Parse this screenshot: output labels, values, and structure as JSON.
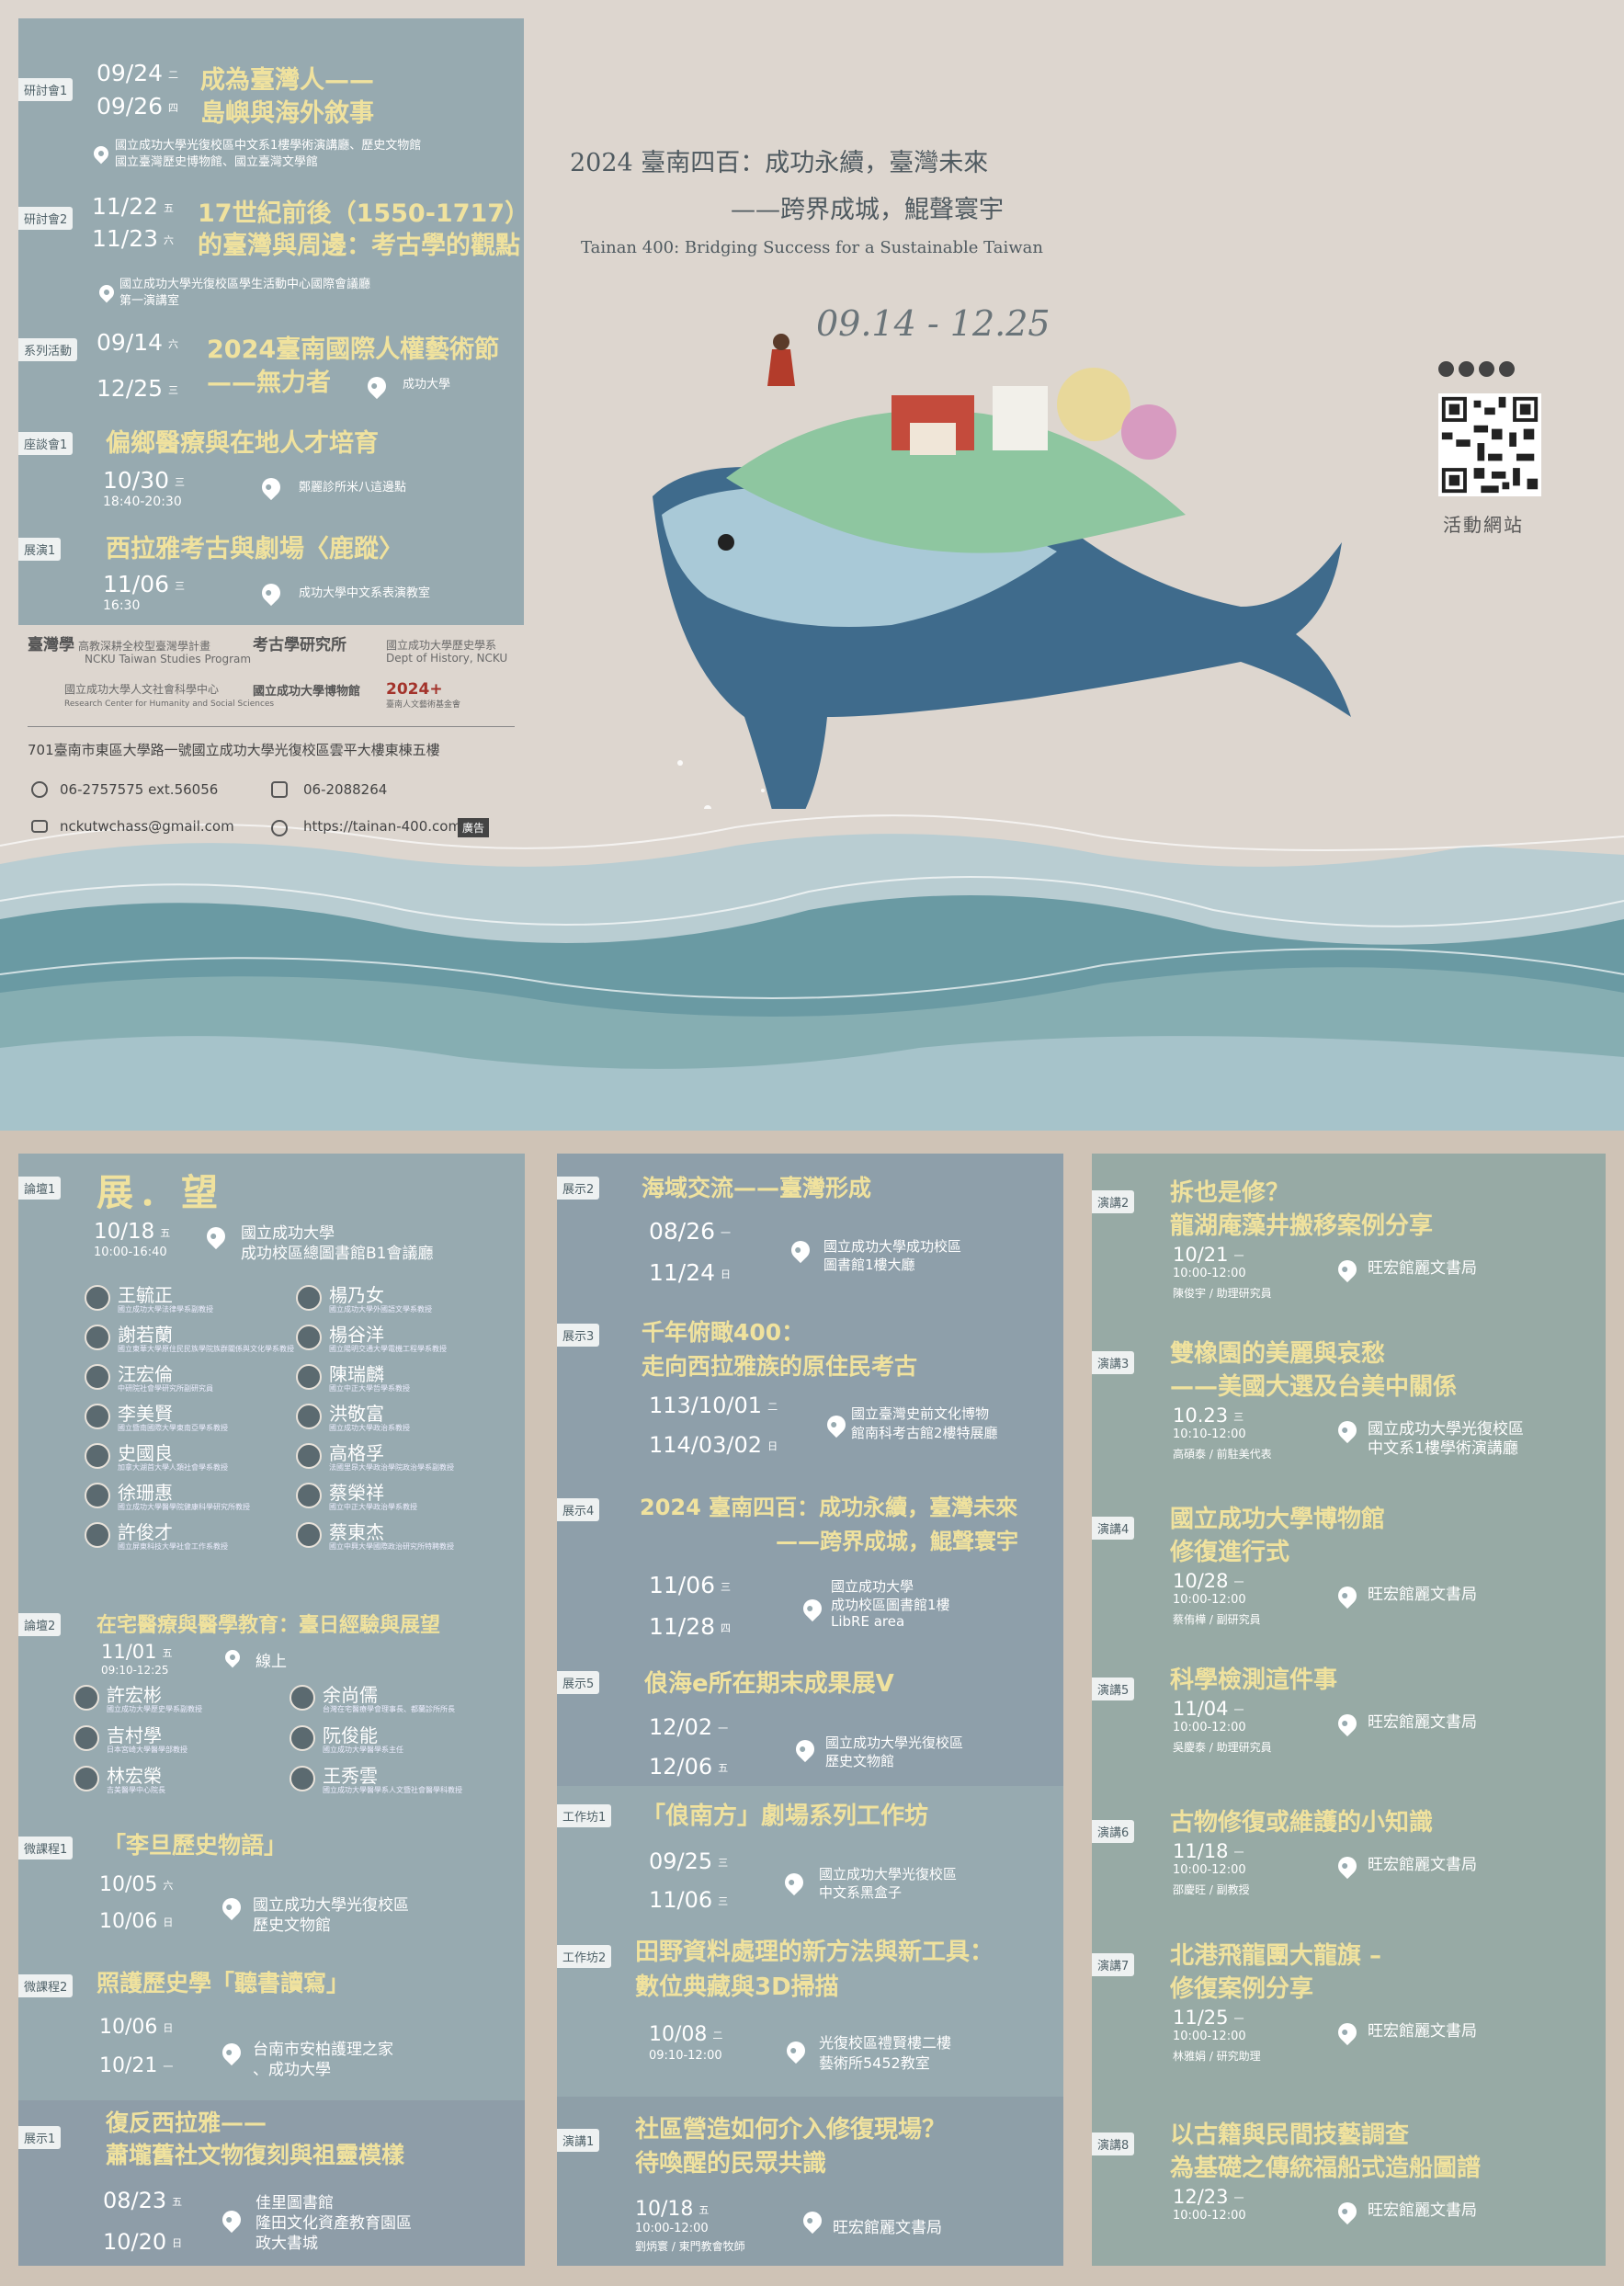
{
  "top": {
    "left_events": [
      {
        "tag": "研討會1",
        "d1": "09/24",
        "w1": "二",
        "d2": "09/26",
        "w2": "四",
        "t1": "成為臺灣人——",
        "t2": "島嶼與海外敘事",
        "v1": "國立成功大學光復校區中文系1樓學術演講廳、歷史文物館",
        "v2": "國立臺灣歷史博物館、國立臺灣文學館"
      },
      {
        "tag": "研討會2",
        "d1": "11/22",
        "w1": "五",
        "d2": "11/23",
        "w2": "六",
        "t1": "17世紀前後（1550-1717）",
        "t2": "的臺灣與周邊：考古學的觀點",
        "v1": "國立成功大學光復校區學生活動中心國際會議廳",
        "v2": "第一演講室"
      },
      {
        "tag": "系列活動",
        "d1": "09/14",
        "w1": "六",
        "d2": "12/25",
        "w2": "三",
        "t1": "2024臺南國際人權藝術節",
        "t2": "——無力者",
        "v1": "成功大學",
        "v2": ""
      },
      {
        "tag": "座談會1",
        "d1": "10/30",
        "w1": "三",
        "time": "18:40-20:30",
        "t1": "偏鄉醫療與在地人才培育",
        "v1": "鄭麗診所米八這邊點"
      },
      {
        "tag": "展演1",
        "d1": "11/06",
        "w1": "三",
        "time": "16:30",
        "t1": "西拉雅考古與劇場〈鹿蹤〉",
        "v1": "成功大學中文系表演教室"
      }
    ],
    "logos": [
      {
        "mark": "臺灣學",
        "text": "高教深耕全校型臺灣學計畫",
        "sub": "NCKU Taiwan Studies Program"
      },
      {
        "mark": "考古學研究所",
        "text": "",
        "sub": ""
      },
      {
        "mark": "",
        "text": "國立成功大學歷史學系",
        "sub": "Dept of History, NCKU"
      },
      {
        "mark": "",
        "text": "國立成功大學人文社會科學中心",
        "sub": "Research Center for Humanity and Social Sciences"
      },
      {
        "mark": "國立成功大學博物館",
        "text": "",
        "sub": ""
      },
      {
        "mark": "2024+",
        "text": "臺南人文藝術基金會",
        "sub": ""
      }
    ],
    "address": "701臺南市東區大學路一號國立成功大學光復校區雲平大樓東棟五樓",
    "phone": "06-2757575 ext.56056",
    "fax": "06-2088264",
    "email": "nckutwchass@gmail.com",
    "website": "https://tainan-400.com",
    "ad_badge": "廣告",
    "title_l1": "2024 臺南四百：成功永續，臺灣未來",
    "title_l2": "——跨界成城，鯤聲寰宇",
    "title_en": "Tainan 400: Bridging Success for a Sustainable Taiwan",
    "date_range": "09.14 - 12.25",
    "qr_label": "活動網站",
    "social_icons": [
      "facebook-icon",
      "youtube-icon",
      "instagram-icon",
      "podcast-icon"
    ]
  },
  "col1": {
    "forum1": {
      "tag": "論壇1",
      "title": "展．望",
      "date": "10/18",
      "wd": "五",
      "time": "10:00-16:40",
      "v1": "國立成功大學",
      "v2": "成功校區總圖書館B1會議廳"
    },
    "speakers1": [
      {
        "name": "王毓正",
        "role": "國立成功大學法律學系副教授"
      },
      {
        "name": "楊乃女",
        "role": "國立成功大學外國語文學系教授"
      },
      {
        "name": "謝若蘭",
        "role": "國立東華大學原住民民族學院族群關係與文化學系教授"
      },
      {
        "name": "楊谷洋",
        "role": "國立陽明交通大學電機工程學系教授"
      },
      {
        "name": "汪宏倫",
        "role": "中研院社會學研究所副研究員"
      },
      {
        "name": "陳瑞麟",
        "role": "國立中正大學哲學系教授"
      },
      {
        "name": "李美賢",
        "role": "國立暨南國際大學東南亞學系教授"
      },
      {
        "name": "洪敬富",
        "role": "國立成功大學政治系教授"
      },
      {
        "name": "史國良",
        "role": "加拿大湖首大學人類社會學系教授"
      },
      {
        "name": "高格孚",
        "role": "法國里昂大學政治學院政治學系副教授"
      },
      {
        "name": "徐珊惠",
        "role": "國立成功大學醫學院健康科學研究所教授"
      },
      {
        "name": "蔡榮祥",
        "role": "國立中正大學政治學系教授"
      },
      {
        "name": "許俊才",
        "role": "國立屏東科技大學社會工作系教授"
      },
      {
        "name": "蔡東杰",
        "role": "國立中興大學國際政治研究所特聘教授"
      }
    ],
    "forum2": {
      "tag": "論壇2",
      "title": "在宅醫療與醫學教育：臺日經驗與展望",
      "date": "11/01",
      "wd": "五",
      "time": "09:10-12:25",
      "venue": "線上"
    },
    "speakers2": [
      {
        "name": "許宏彬",
        "role": "國立成功大學歷史學系副教授"
      },
      {
        "name": "余尚儒",
        "role": "台灣在宅醫療學會理事長、都蘭診所所長"
      },
      {
        "name": "吉村學",
        "role": "日本宮崎大學醫學部教授"
      },
      {
        "name": "阮俊能",
        "role": "國立成功大學醫學系主任"
      },
      {
        "name": "林宏榮",
        "role": "吉美醫學中心院長"
      },
      {
        "name": "王秀雲",
        "role": "國立成功大學醫學系人文暨社會醫學科教授"
      }
    ],
    "micro1": {
      "tag": "微課程1",
      "title": "「李旦歷史物語」",
      "d1": "10/05",
      "w1": "六",
      "d2": "10/06",
      "w2": "日",
      "v1": "國立成功大學光復校區",
      "v2": "歷史文物館"
    },
    "micro2": {
      "tag": "微課程2",
      "title": "照護歷史學「聽書讀寫」",
      "d1": "10/06",
      "w1": "日",
      "d2": "10/21",
      "w2": "一",
      "v1": "台南市安柏護理之家",
      "v2": "、成功大學"
    },
    "exh1": {
      "tag": "展示1",
      "t1": "復反西拉雅——",
      "t2": "蕭壠舊社文物復刻與祖靈模樣",
      "d1": "08/23",
      "w1": "五",
      "d2": "10/20",
      "w2": "日",
      "v1": "佳里圖書館",
      "v2": "隆田文化資產教育園區",
      "v3": "政大書城"
    }
  },
  "col2": {
    "exh2": {
      "tag": "展示2",
      "title": "海域交流——臺灣形成",
      "d1": "08/26",
      "w1": "一",
      "d2": "11/24",
      "w2": "日",
      "v1": "國立成功大學成功校區",
      "v2": "圖書館1樓大廳"
    },
    "exh3": {
      "tag": "展示3",
      "t1": "千年俯瞰400：",
      "t2": "走向西拉雅族的原住民考古",
      "d1": "113/10/01",
      "w1": "二",
      "d2": "114/03/02",
      "w2": "日",
      "v1": "國立臺灣史前文化博物",
      "v2": "館南科考古館2樓特展廳"
    },
    "exh4": {
      "tag": "展示4",
      "t1": "2024 臺南四百：成功永續，臺灣未來",
      "t2": "——跨界成城，鯤聲寰宇",
      "d1": "11/06",
      "w1": "三",
      "d2": "11/28",
      "w2": "四",
      "v1": "國立成功大學",
      "v2": "成功校區圖書館1樓",
      "v3": "LibRE area"
    },
    "exh5": {
      "tag": "展示5",
      "title": "俍海e所在期末成果展V",
      "d1": "12/02",
      "w1": "一",
      "d2": "12/06",
      "w2": "五",
      "v1": "國立成功大學光復校區",
      "v2": "歷史文物館"
    },
    "ws1": {
      "tag": "工作坊1",
      "title": "「俍南方」劇場系列工作坊",
      "d1": "09/25",
      "w1": "三",
      "d2": "11/06",
      "w2": "三",
      "v1": "國立成功大學光復校區",
      "v2": "中文系黑盒子"
    },
    "ws2": {
      "tag": "工作坊2",
      "t1": "田野資料處理的新方法與新工具：",
      "t2": "數位典藏與3D掃描",
      "d1": "10/08",
      "w1": "二",
      "time": "09:10-12:00",
      "v1": "光復校區禮賢樓二樓",
      "v2": "藝術所5452教室"
    },
    "talk1": {
      "tag": "演講1",
      "t1": "社區營造如何介入修復現場？",
      "t2": "待喚醒的民眾共識",
      "d1": "10/18",
      "w1": "五",
      "time": "10:00-12:00",
      "speaker": "劉炳寰 / 東門教會牧師",
      "venue": "旺宏館麗文書局"
    }
  },
  "col3": {
    "talks": [
      {
        "tag": "演講2",
        "t1": "拆也是修？",
        "t2": "龍湖庵藻井搬移案例分享",
        "date": "10/21",
        "wd": "一",
        "time": "10:00-12:00",
        "speaker": "陳俊宇 / 助理研究員",
        "v1": "旺宏館麗文書局",
        "v2": ""
      },
      {
        "tag": "演講3",
        "t1": "雙橡園的美麗與哀愁",
        "t2": "——美國大選及台美中關係",
        "date": "10.23",
        "wd": "三",
        "time": "10:10-12:00",
        "speaker": "高碩泰 / 前駐美代表",
        "v1": "國立成功大學光復校區",
        "v2": "中文系1樓學術演講廳"
      },
      {
        "tag": "演講4",
        "t1": "國立成功大學博物館",
        "t2": "修復進行式",
        "date": "10/28",
        "wd": "一",
        "time": "10:00-12:00",
        "speaker": "蔡侑樺 / 副研究員",
        "v1": "旺宏館麗文書局",
        "v2": ""
      },
      {
        "tag": "演講5",
        "t1": "科學檢測這件事",
        "t2": "",
        "date": "11/04",
        "wd": "一",
        "time": "10:00-12:00",
        "speaker": "吳慶泰 / 助理研究員",
        "v1": "旺宏館麗文書局",
        "v2": ""
      },
      {
        "tag": "演講6",
        "t1": "古物修復或維護的小知識",
        "t2": "",
        "date": "11/18",
        "wd": "一",
        "time": "10:00-12:00",
        "speaker": "邵慶旺 / 副教授",
        "v1": "旺宏館麗文書局",
        "v2": ""
      },
      {
        "tag": "演講7",
        "t1": "北港飛龍團大龍旗 –",
        "t2": "修復案例分享",
        "date": "11/25",
        "wd": "一",
        "time": "10:00-12:00",
        "speaker": "林雅娟 / 研究助理",
        "v1": "旺宏館麗文書局",
        "v2": ""
      },
      {
        "tag": "演講8",
        "t1": "以古籍與民間技藝調查",
        "t2": "為基礎之傳統福船式造船圖譜",
        "date": "12/23",
        "wd": "一",
        "time": "10:00-12:00",
        "speaker": "",
        "v1": "旺宏館麗文書局",
        "v2": ""
      }
    ]
  }
}
